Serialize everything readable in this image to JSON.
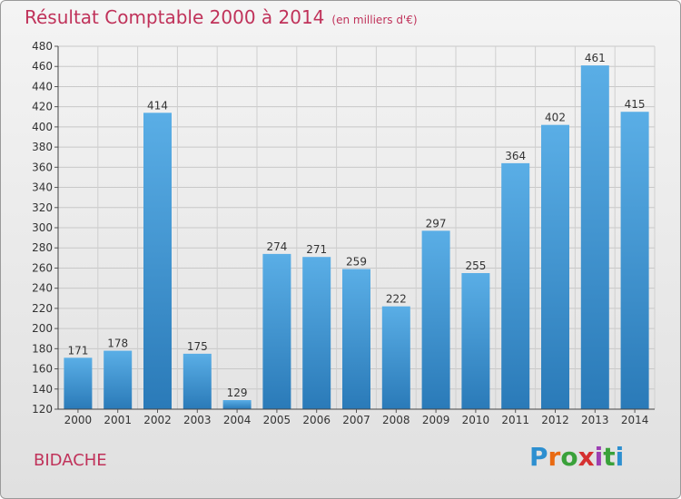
{
  "title": "Résultat Comptable 2000 à 2014",
  "unit": "(en milliers d'€)",
  "commune": "BIDACHE",
  "logo": {
    "letters": [
      "P",
      "r",
      "o",
      "x",
      "i",
      "t",
      "i"
    ],
    "colors": [
      "#2d8fd0",
      "#e96a12",
      "#3aa13a",
      "#d53030",
      "#9c3fb3",
      "#3aa13a",
      "#2d8fd0"
    ]
  },
  "colors": {
    "title": "#c0325a",
    "bar_light": "#5aaee6",
    "bar_dark": "#2a7ab8"
  },
  "chart_data": {
    "type": "bar",
    "categories": [
      "2000",
      "2001",
      "2002",
      "2003",
      "2004",
      "2005",
      "2006",
      "2007",
      "2008",
      "2009",
      "2010",
      "2011",
      "2012",
      "2013",
      "2014"
    ],
    "values": [
      171,
      178,
      414,
      175,
      129,
      274,
      271,
      259,
      222,
      297,
      255,
      364,
      402,
      461,
      415
    ],
    "ylim": [
      120,
      480
    ],
    "yticks": [
      120,
      140,
      160,
      180,
      200,
      220,
      240,
      260,
      280,
      300,
      320,
      340,
      360,
      380,
      400,
      420,
      440,
      460,
      480
    ],
    "grid": true,
    "xlabel": "",
    "ylabel": ""
  }
}
